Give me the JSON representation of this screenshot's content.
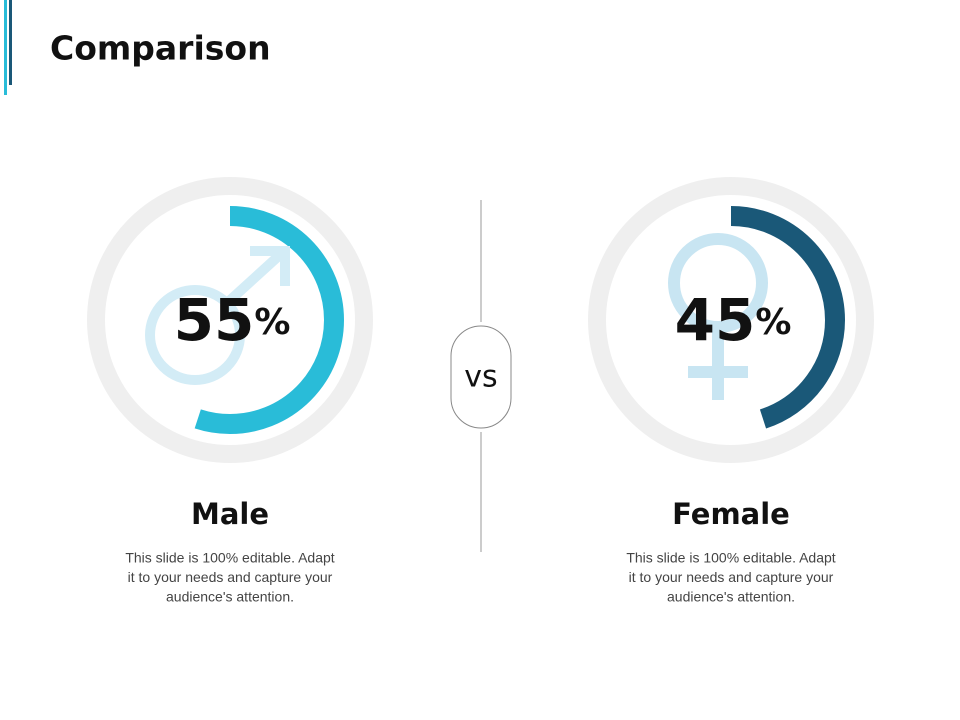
{
  "title": "Comparison",
  "divider": "VS",
  "items": [
    {
      "label": "Male",
      "value": 55,
      "unit": "%",
      "color": "#29bcd8",
      "description": [
        "This slide is 100% editable. Adapt",
        "it to your needs and capture your",
        "audience's attention."
      ]
    },
    {
      "label": "Female",
      "value": 45,
      "unit": "%",
      "color": "#1a5878",
      "description": [
        "This slide is 100% editable. Adapt",
        "it to your needs and capture your",
        "audience's attention."
      ]
    }
  ]
}
